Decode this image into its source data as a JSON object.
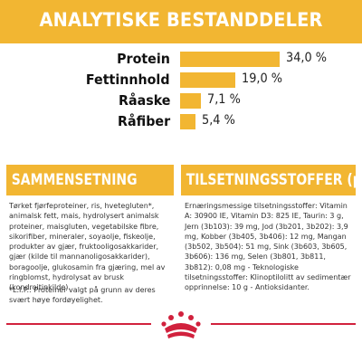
{
  "title": "ANALYTISKE BESTANDDELER",
  "chart_data": {
    "type": "bar",
    "orientation": "horizontal",
    "categories": [
      "Protein",
      "Fettinnhold",
      "Råaske",
      "Råfiber"
    ],
    "values": [
      34.0,
      19.0,
      7.1,
      5.4
    ],
    "value_labels": [
      "34,0 %",
      "19,0 %",
      "7,1 %",
      "5,4 %"
    ],
    "xlim": [
      0,
      34.0
    ],
    "bar_color": "#f2b632"
  },
  "composition": {
    "heading": "SAMMENSETNING",
    "text": "Tørket fjørfeproteiner, ris, hvetegluten*, animalsk fett, mais, hydrolysert animalsk proteiner, maisgluten, vegetabilske fibre, sikorifiber, mineraler, soyaolje, fiskeolje, produkter av gjær, fruktooligosakkarider, gjær (kilde til mannanoligosakkarider), boragoolje, glukosamin fra gjæring, mel av ringblomst, hydrolysat av brusk (kondroitinkilde).",
    "footnote": "*L.I.P.: Proteiner valgt på grunn av deres svært høye fordøyelighet."
  },
  "additives": {
    "heading": "TILSETNINGSSTOFFER (pr. kg)",
    "text": "Ernæringsmessige tilsetningsstoffer: Vitamin A: 30900 IE, Vitamin D3: 825 IE, Taurin: 3 g, Jern (3b103): 39 mg, Jod (3b201, 3b202): 3,9 mg, Kobber (3b405, 3b406): 12 mg, Mangan (3b502, 3b504): 51 mg, Sink (3b603, 3b605, 3b606): 136 mg, Selen (3b801, 3b811, 3b812): 0,08 mg - Teknologiske tilsetningsstoffer: Klinoptilolitt av sedimentær opprinnelse: 10 g - Antioksidanter."
  },
  "colors": {
    "accent": "#f2b632",
    "brand_red": "#d1213d"
  },
  "logo": {
    "icon": "royal-canin-crown-icon"
  }
}
